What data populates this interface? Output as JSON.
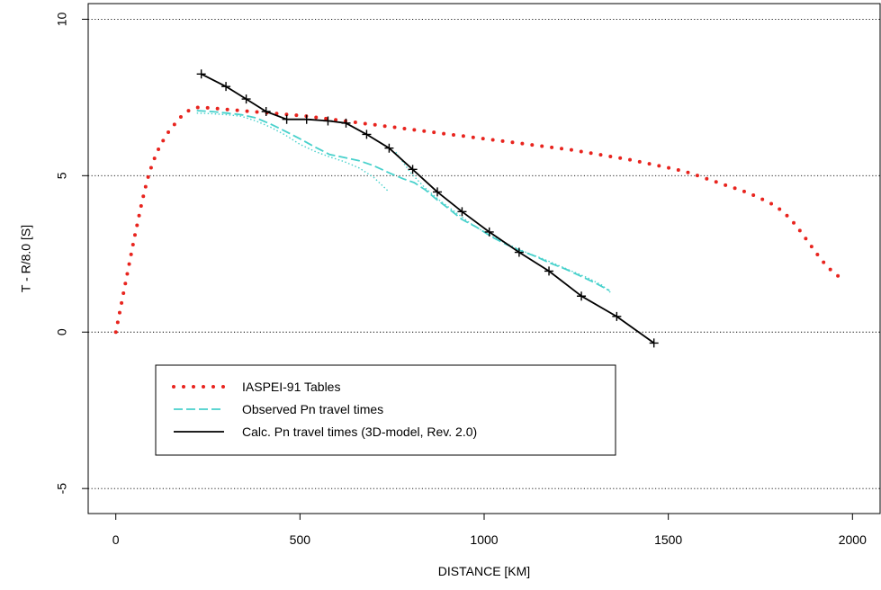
{
  "chart_data": {
    "type": "line",
    "title": "",
    "xlabel": "DISTANCE [KM]",
    "ylabel": "T - R/8.0 [S]",
    "xlim": [
      -75,
      2075
    ],
    "ylim": [
      -5.8,
      10.5
    ],
    "x_ticks": [
      0,
      500,
      1000,
      1500,
      2000
    ],
    "y_ticks": [
      -5,
      0,
      5,
      10
    ],
    "x_tick_labels": [
      "0",
      "500",
      "1000",
      "1500",
      "2000"
    ],
    "y_tick_labels": [
      "-5",
      "0",
      "5",
      "10"
    ],
    "grid": {
      "horizontal_at": [
        -5,
        0,
        5,
        10
      ],
      "style": "dotted"
    },
    "legend_position": "bottom-left",
    "series": [
      {
        "name": "IASPEI-91 Tables",
        "style": "dotted",
        "color": "#e8241e",
        "x": [
          0,
          10,
          20,
          30,
          40,
          50,
          60,
          70,
          80,
          90,
          100,
          110,
          120,
          130,
          140,
          150,
          160,
          170,
          180,
          190,
          200,
          210,
          220,
          240,
          260,
          280,
          300,
          320,
          340,
          360,
          380,
          400,
          420,
          440,
          460,
          480,
          500,
          520,
          540,
          560,
          580,
          600,
          620,
          640,
          660,
          680,
          700,
          720,
          740,
          760,
          780,
          800,
          820,
          840,
          860,
          880,
          900,
          920,
          940,
          960,
          980,
          1000,
          1020,
          1040,
          1060,
          1080,
          1100,
          1120,
          1140,
          1160,
          1180,
          1200,
          1220,
          1240,
          1260,
          1280,
          1300,
          1320,
          1340,
          1360,
          1380,
          1400,
          1420,
          1440,
          1460,
          1480,
          1500,
          1520,
          1540,
          1560,
          1580,
          1600,
          1620,
          1640,
          1660,
          1680,
          1700,
          1720,
          1740,
          1760,
          1780,
          1800,
          1820,
          1840,
          1860,
          1880,
          1900,
          1920,
          1940,
          1960,
          1975
        ],
        "y": [
          0.0,
          0.6,
          1.2,
          1.8,
          2.4,
          3.0,
          3.55,
          4.1,
          4.6,
          5.05,
          5.4,
          5.7,
          5.95,
          6.15,
          6.35,
          6.5,
          6.65,
          6.8,
          6.92,
          7.02,
          7.1,
          7.15,
          7.18,
          7.18,
          7.16,
          7.14,
          7.12,
          7.1,
          7.08,
          7.06,
          7.04,
          7.02,
          7.0,
          6.98,
          6.96,
          6.94,
          6.92,
          6.9,
          6.87,
          6.84,
          6.81,
          6.78,
          6.75,
          6.72,
          6.69,
          6.66,
          6.63,
          6.6,
          6.57,
          6.54,
          6.51,
          6.48,
          6.45,
          6.42,
          6.39,
          6.36,
          6.33,
          6.3,
          6.27,
          6.24,
          6.21,
          6.18,
          6.15,
          6.12,
          6.09,
          6.06,
          6.03,
          6.0,
          5.97,
          5.94,
          5.91,
          5.88,
          5.85,
          5.82,
          5.78,
          5.74,
          5.7,
          5.66,
          5.62,
          5.58,
          5.54,
          5.5,
          5.45,
          5.4,
          5.35,
          5.3,
          5.25,
          5.2,
          5.15,
          5.08,
          5.0,
          4.92,
          4.84,
          4.76,
          4.68,
          4.6,
          4.52,
          4.43,
          4.33,
          4.22,
          4.1,
          3.95,
          3.75,
          3.5,
          3.2,
          2.88,
          2.55,
          2.25,
          2.0,
          1.8,
          1.65
        ]
      },
      {
        "name": "Observed Pn travel times",
        "style": "dashed",
        "color": "#48d1cc",
        "x": [
          220,
          260,
          300,
          340,
          380,
          420,
          460,
          500,
          540,
          580,
          620,
          660,
          700,
          740,
          780,
          810,
          840,
          870,
          900,
          940,
          980,
          1020,
          1060,
          1100,
          1140,
          1180,
          1220,
          1260,
          1300,
          1340
        ],
        "y": [
          7.08,
          7.05,
          7.0,
          6.95,
          6.85,
          6.65,
          6.42,
          6.18,
          5.92,
          5.68,
          5.58,
          5.48,
          5.32,
          5.1,
          4.9,
          4.78,
          4.55,
          4.25,
          3.98,
          3.6,
          3.35,
          3.05,
          2.8,
          2.6,
          2.42,
          2.2,
          2.02,
          1.8,
          1.58,
          1.33
        ]
      },
      {
        "name": "",
        "style": "dotted",
        "color": "#48d1cc",
        "x": [
          220,
          260,
          300,
          340,
          380,
          420,
          460,
          500,
          540,
          580,
          620,
          660,
          700,
          740
        ],
        "y": [
          7.0,
          6.98,
          6.95,
          6.9,
          6.75,
          6.55,
          6.3,
          6.0,
          5.78,
          5.6,
          5.45,
          5.25,
          4.95,
          4.5
        ]
      },
      {
        "name": "",
        "style": "dotted",
        "color": "#48d1cc",
        "x": [
          760,
          800,
          840,
          880,
          920,
          960,
          1000,
          1040,
          1080,
          1120,
          1160,
          1200,
          1240,
          1280,
          1320,
          1345
        ],
        "y": [
          5.75,
          5.1,
          4.6,
          4.2,
          3.85,
          3.5,
          3.2,
          2.95,
          2.72,
          2.52,
          2.34,
          2.14,
          1.94,
          1.74,
          1.5,
          1.25
        ]
      },
      {
        "name": "Calc. Pn travel times (3D-model, Rev. 2.0)",
        "style": "solid",
        "color": "#000000",
        "marker": "+",
        "x": [
          232,
          299,
          354,
          408,
          464,
          518,
          576,
          625,
          681,
          742,
          806,
          873,
          940,
          1014,
          1095,
          1176,
          1264,
          1360,
          1461
        ],
        "y": [
          8.25,
          7.85,
          7.45,
          7.05,
          6.8,
          6.8,
          6.75,
          6.68,
          6.32,
          5.88,
          5.2,
          4.48,
          3.85,
          3.2,
          2.55,
          1.95,
          1.15,
          0.5,
          -0.35
        ]
      }
    ]
  }
}
